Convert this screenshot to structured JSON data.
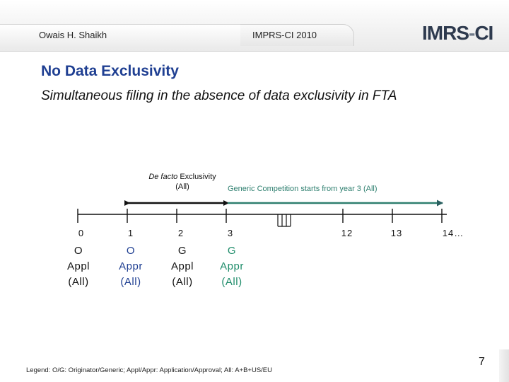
{
  "header": {
    "author": "Owais H. Shaikh",
    "conference": "IMPRS-CI 2010",
    "logo_main": "IMRS",
    "logo_dash": "-",
    "logo_tail": "CI"
  },
  "slide": {
    "title": "No Data Exclusivity",
    "subtitle": "Simultaneous filing in the absence of data exclusivity in FTA"
  },
  "timeline": {
    "defacto_label_italic": "De facto",
    "defacto_label_rest": "Exclusivity",
    "defacto_label_line2": "(All)",
    "generic_label": "Generic Competition starts from year 3 (All)",
    "ticks": [
      "0",
      "1",
      "2",
      "3",
      "12",
      "13",
      "14…"
    ],
    "events": [
      {
        "line1": "O",
        "line2": "Appl",
        "line3": "(All)"
      },
      {
        "line1": "O",
        "line2": "Appr",
        "line3": "(All)"
      },
      {
        "line1": "G",
        "line2": "Appl",
        "line3": "(All)"
      },
      {
        "line1": "G",
        "line2": "Appr",
        "line3": "(All)"
      }
    ]
  },
  "colors": {
    "title": "#1f3f92",
    "generic_arrow": "#2e7f6f",
    "originator_approval": "#1f3f92",
    "generic_approval": "#1e8c6a"
  },
  "footer": {
    "legend": "Legend: O/G: Originator/Generic; Appl/Appr: Application/Approval; All: A+B+US/EU",
    "page_number": "7"
  }
}
